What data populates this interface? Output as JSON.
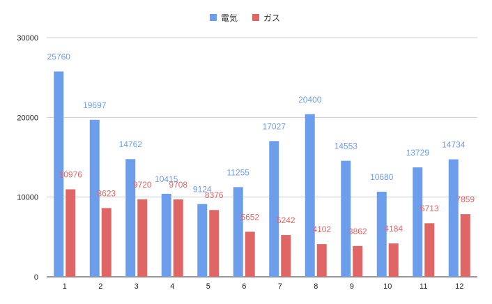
{
  "chart_data": {
    "type": "bar",
    "categories": [
      "1",
      "2",
      "3",
      "4",
      "5",
      "6",
      "7",
      "8",
      "9",
      "10",
      "11",
      "12"
    ],
    "series": [
      {
        "name": "電気",
        "color": "#6d9eeb",
        "values": [
          25760,
          19697,
          14762,
          10415,
          9124,
          11255,
          17027,
          20400,
          14553,
          10680,
          13729,
          14734
        ]
      },
      {
        "name": "ガス",
        "color": "#e06666",
        "values": [
          10976,
          8623,
          9720,
          9708,
          8376,
          5652,
          5242,
          4102,
          3862,
          4184,
          6713,
          7859
        ]
      }
    ],
    "ylim": [
      0,
      30000
    ],
    "yticks": [
      0,
      10000,
      20000,
      30000
    ],
    "grid": true,
    "legend": "top-center"
  }
}
